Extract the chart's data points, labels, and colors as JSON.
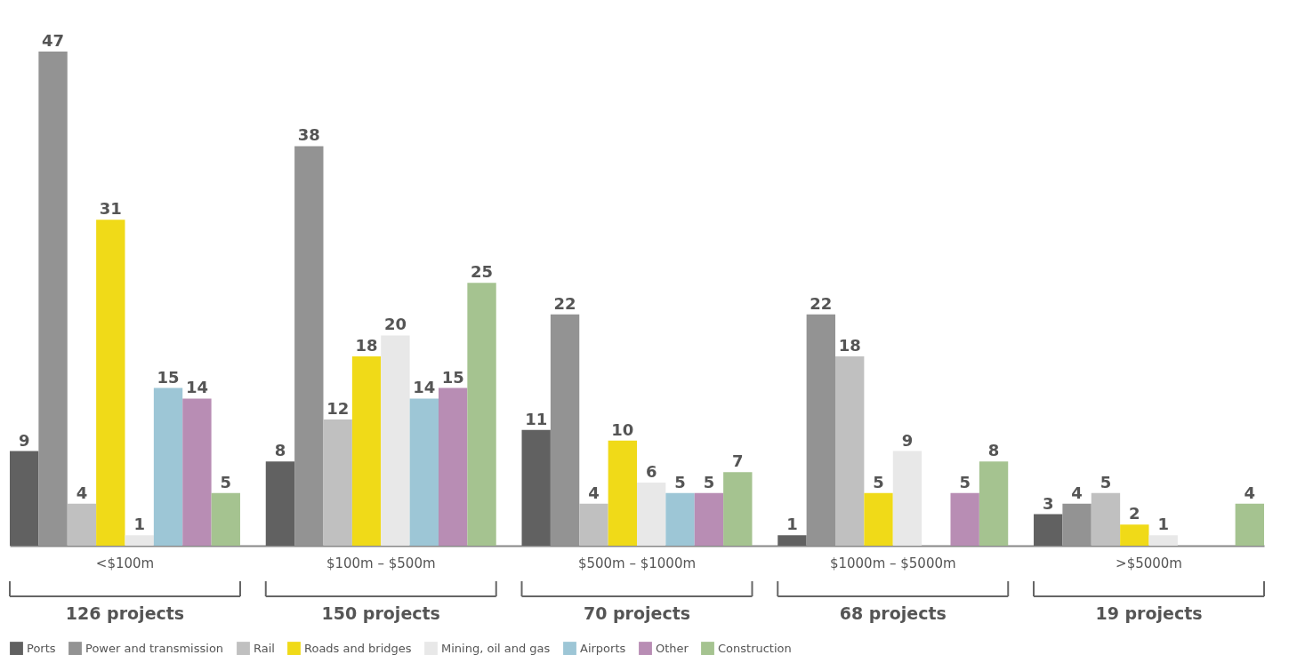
{
  "chart_data": {
    "type": "bar",
    "categories": [
      "<$100m",
      "$100m – $500m",
      "$500m – $1000m",
      "$1000m – $5000m",
      ">$5000m"
    ],
    "series": [
      {
        "name": "Ports",
        "color": "#616161",
        "values": [
          9,
          8,
          11,
          1,
          3
        ]
      },
      {
        "name": "Power and transmission",
        "color": "#939393",
        "values": [
          47,
          38,
          22,
          22,
          4
        ]
      },
      {
        "name": "Rail",
        "color": "#c0c0c0",
        "values": [
          4,
          12,
          4,
          18,
          5
        ]
      },
      {
        "name": "Roads and bridges",
        "color": "#f0da18",
        "values": [
          31,
          18,
          10,
          5,
          2
        ]
      },
      {
        "name": "Mining, oil and gas",
        "color": "#e8e8e8",
        "values": [
          1,
          20,
          6,
          9,
          1
        ]
      },
      {
        "name": "Airports",
        "color": "#9dc6d6",
        "values": [
          15,
          14,
          5,
          null,
          null
        ]
      },
      {
        "name": "Other",
        "color": "#b88db4",
        "values": [
          14,
          15,
          5,
          5,
          null
        ]
      },
      {
        "name": "Construction",
        "color": "#a5c390",
        "values": [
          5,
          25,
          7,
          8,
          4
        ]
      }
    ],
    "annotations": [
      "126 projects",
      "150 projects",
      "70 projects",
      "68 projects",
      "19 projects"
    ],
    "data_labels": true,
    "tick_labels": "x",
    "grid": false,
    "legend": "bottom left"
  }
}
